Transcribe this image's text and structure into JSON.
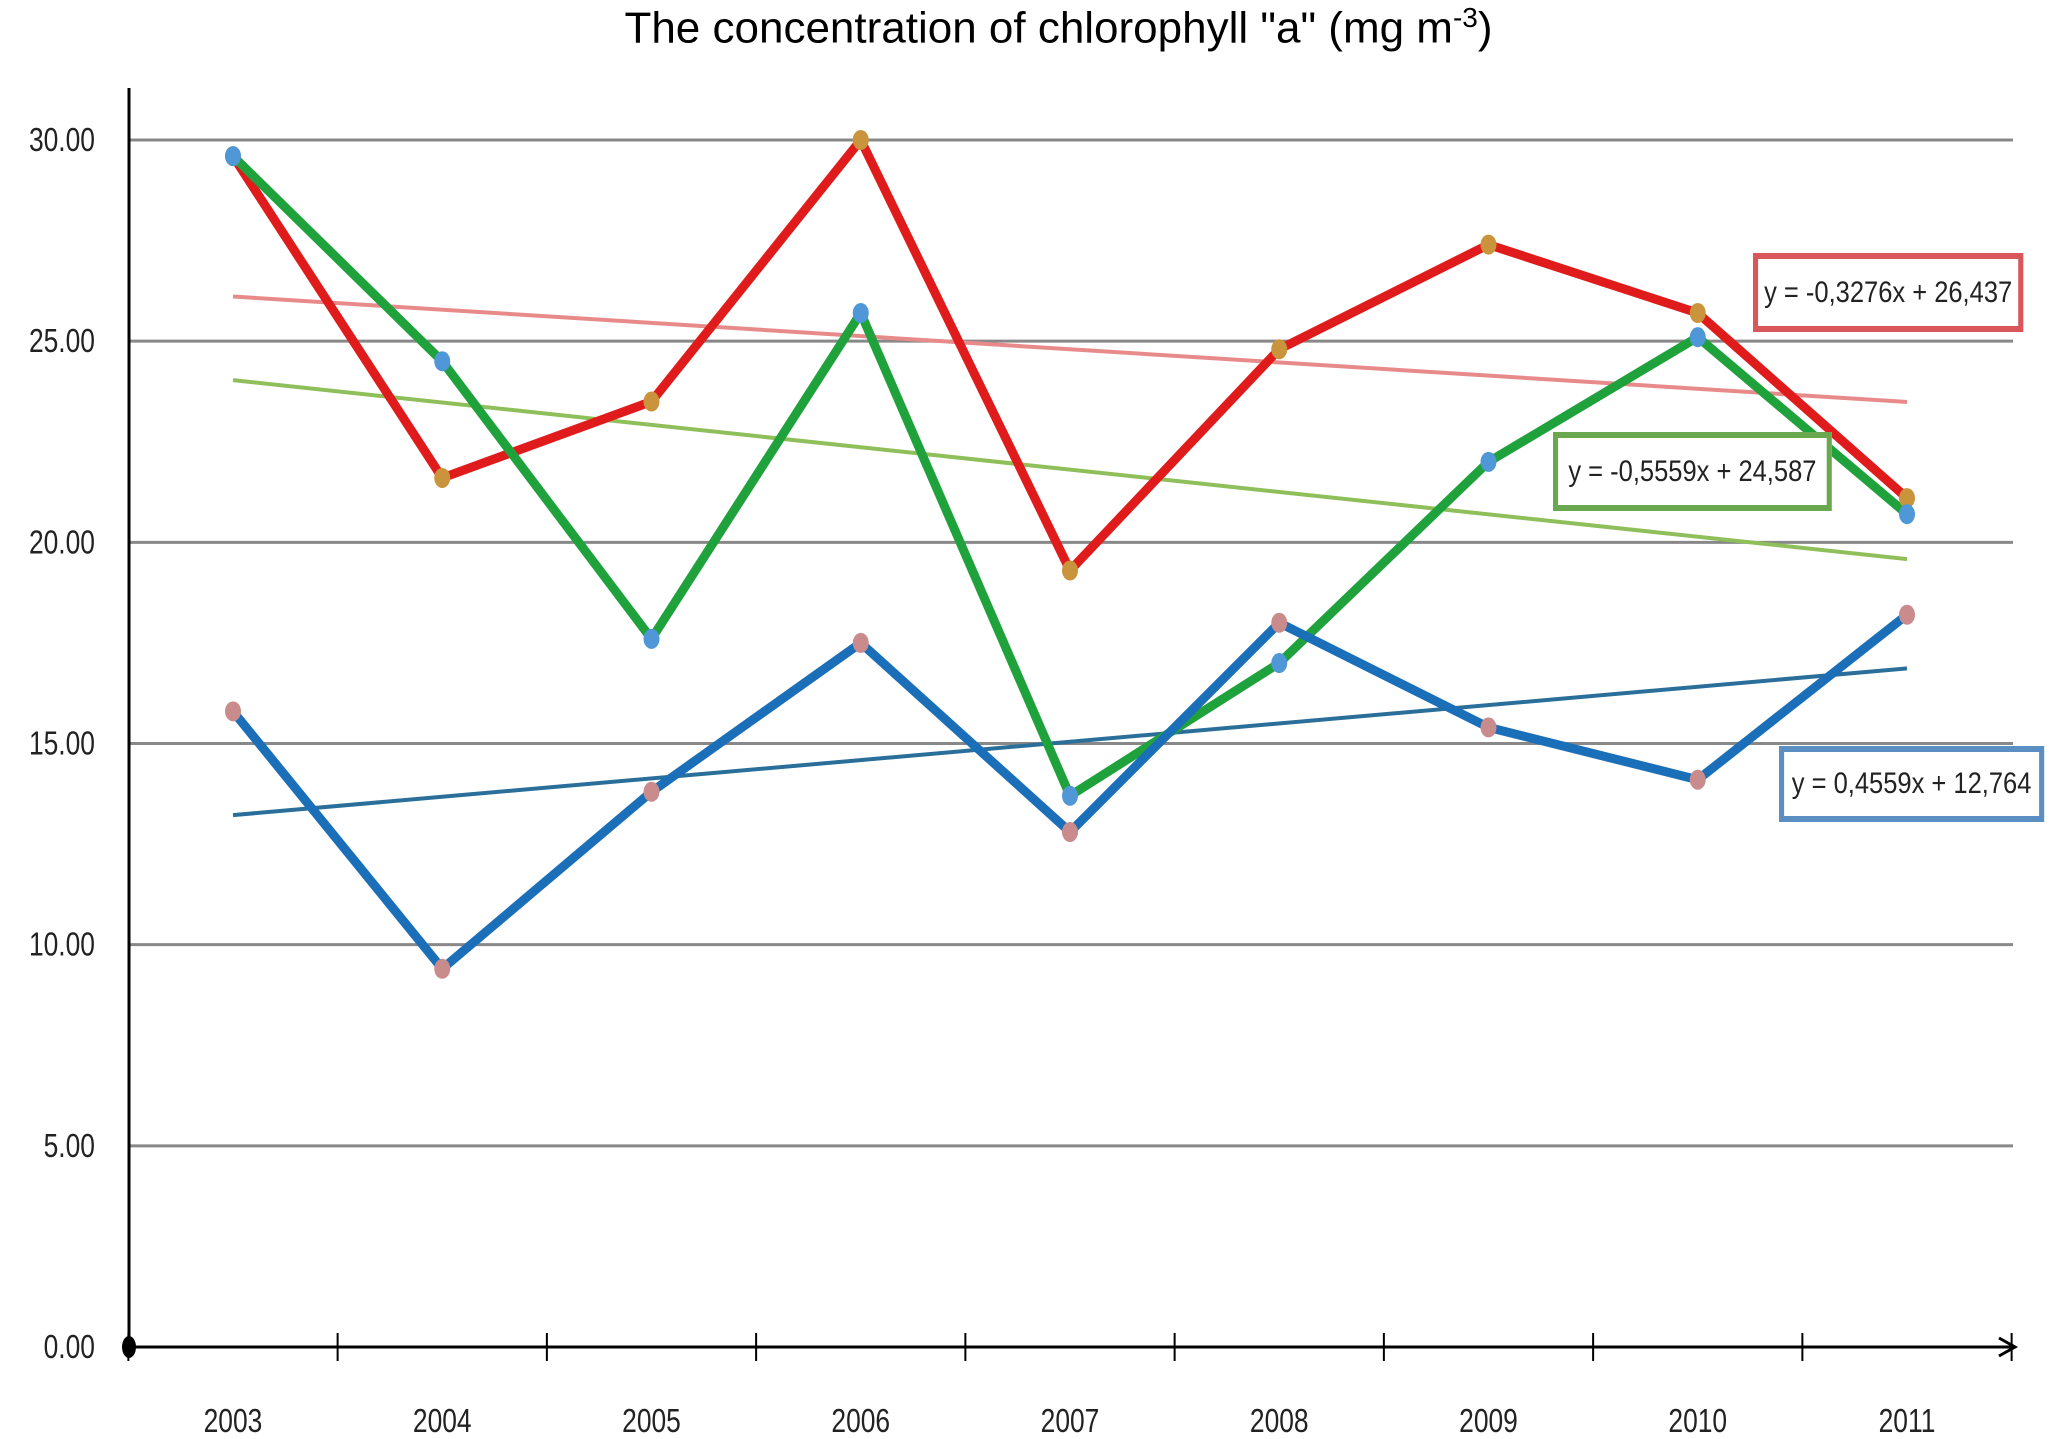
{
  "chart_data": {
    "type": "line",
    "title": "The concentration of chlorophyll \"a\" (mg m",
    "title_superscript": "-3",
    "title_close": ")",
    "categories": [
      "2003",
      "2004",
      "2005",
      "2006",
      "2007",
      "2008",
      "2009",
      "2010",
      "2011"
    ],
    "yticks": [
      "0.00",
      "5.00",
      "10.00",
      "15.00",
      "20.00",
      "25.00",
      "30.00"
    ],
    "ylim": [
      0,
      30
    ],
    "grid": true,
    "series": [
      {
        "color": "#e01b1b",
        "marker_color": "#c9943c",
        "values": [
          29.6,
          21.6,
          23.5,
          30.0,
          19.3,
          24.8,
          27.4,
          25.7,
          21.1
        ],
        "trend": {
          "slope": -0.3276,
          "intercept": 26.437,
          "color": "#e88a8a",
          "label": "y = -0,3276x + 26,437",
          "box_color": "#d9575a"
        }
      },
      {
        "color": "#1fa23c",
        "marker_color": "#4f97d6",
        "values": [
          29.6,
          24.5,
          17.6,
          25.7,
          13.7,
          17.0,
          22.0,
          25.1,
          20.7
        ],
        "trend": {
          "slope": -0.5559,
          "intercept": 24.587,
          "color": "#8fbf5a",
          "label": "y = -0,5559x + 24,587",
          "box_color": "#6aa84f"
        }
      },
      {
        "color": "#1a6fb8",
        "marker_color": "#c98b8b",
        "values": [
          15.8,
          9.4,
          13.8,
          17.5,
          12.8,
          18.0,
          15.4,
          14.1,
          18.2
        ],
        "trend": {
          "slope": 0.4559,
          "intercept": 12.764,
          "color": "#2a6f9a",
          "label": "y = 0,4559x + 12,764",
          "box_color": "#5b8fc4"
        }
      }
    ]
  }
}
